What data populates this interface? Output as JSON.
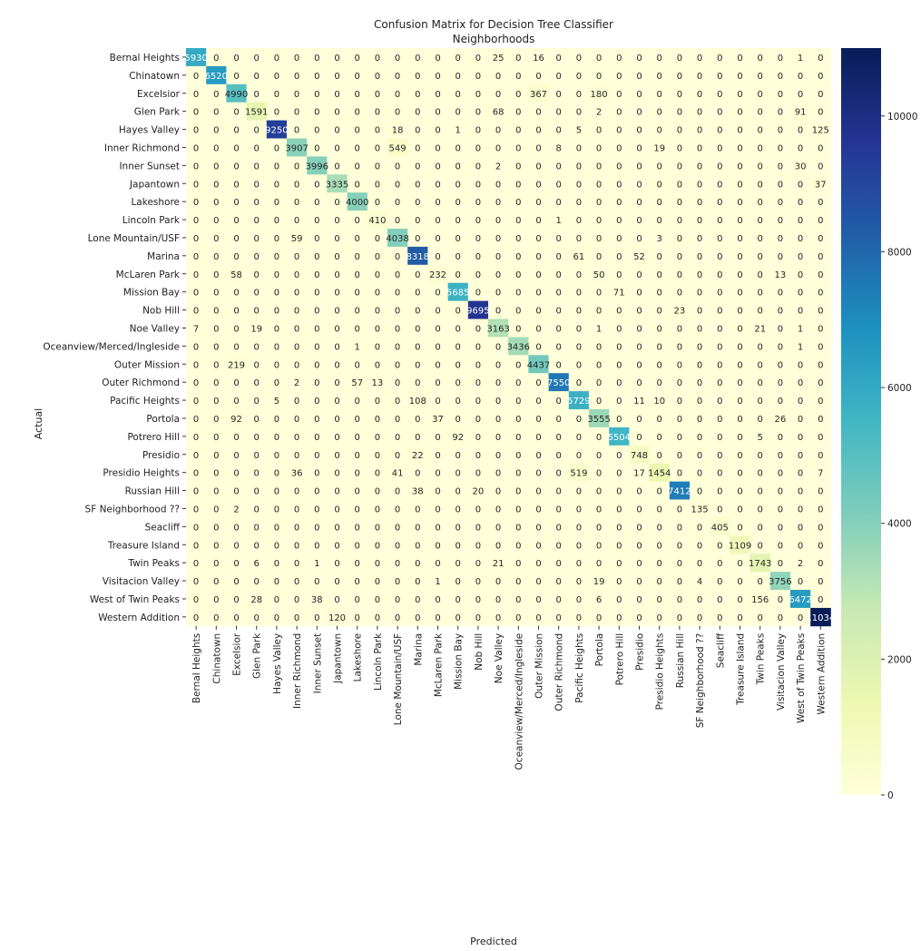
{
  "chart_data": {
    "type": "heatmap",
    "title": "Confusion Matrix for Decision Tree Classifier",
    "subtitle": "Neighborhoods",
    "xlabel": "Predicted",
    "ylabel": "Actual",
    "colormap": "YlGnBu",
    "colorbar": {
      "min": 0,
      "max": 11000,
      "ticks": [
        0,
        2000,
        4000,
        6000,
        8000,
        10000
      ]
    },
    "labels": [
      "Bernal Heights",
      "Chinatown",
      "Excelsior",
      "Glen Park",
      "Hayes Valley",
      "Inner Richmond",
      "Inner Sunset",
      "Japantown",
      "Lakeshore",
      "Lincoln Park",
      "Lone Mountain/USF",
      "Marina",
      "McLaren Park",
      "Mission Bay",
      "Nob Hill",
      "Noe Valley",
      "Oceanview/Merced/Ingleside",
      "Outer Mission",
      "Outer Richmond",
      "Pacific Heights",
      "Portola",
      "Potrero Hill",
      "Presidio",
      "Presidio Heights",
      "Russian Hill",
      "SF Neighborhood ??",
      "Seacliff",
      "Treasure Island",
      "Twin Peaks",
      "Visitacion Valley",
      "West of Twin Peaks",
      "Western Addition"
    ],
    "matrix": [
      [
        5930,
        0,
        0,
        0,
        0,
        0,
        0,
        0,
        0,
        0,
        0,
        0,
        0,
        0,
        0,
        25,
        0,
        16,
        0,
        0,
        0,
        0,
        0,
        0,
        0,
        0,
        0,
        0,
        0,
        0,
        1,
        0
      ],
      [
        0,
        6520,
        0,
        0,
        0,
        0,
        0,
        0,
        0,
        0,
        0,
        0,
        0,
        0,
        0,
        0,
        0,
        0,
        0,
        0,
        0,
        0,
        0,
        0,
        0,
        0,
        0,
        0,
        0,
        0,
        0,
        0
      ],
      [
        0,
        0,
        4990,
        0,
        0,
        0,
        0,
        0,
        0,
        0,
        0,
        0,
        0,
        0,
        0,
        0,
        0,
        367,
        0,
        0,
        180,
        0,
        0,
        0,
        0,
        0,
        0,
        0,
        0,
        0,
        0,
        0
      ],
      [
        0,
        0,
        0,
        1591,
        0,
        0,
        0,
        0,
        0,
        0,
        0,
        0,
        0,
        0,
        0,
        68,
        0,
        0,
        0,
        0,
        2,
        0,
        0,
        0,
        0,
        0,
        0,
        0,
        0,
        0,
        91,
        0
      ],
      [
        0,
        0,
        0,
        0,
        9250,
        0,
        0,
        0,
        0,
        0,
        18,
        0,
        0,
        1,
        0,
        0,
        0,
        0,
        0,
        5,
        0,
        0,
        0,
        0,
        0,
        0,
        0,
        0,
        0,
        0,
        0,
        125
      ],
      [
        0,
        0,
        0,
        0,
        0,
        3907,
        0,
        0,
        0,
        0,
        549,
        0,
        0,
        0,
        0,
        0,
        0,
        0,
        8,
        0,
        0,
        0,
        0,
        19,
        0,
        0,
        0,
        0,
        0,
        0,
        0,
        0
      ],
      [
        0,
        0,
        0,
        0,
        0,
        0,
        3996,
        0,
        0,
        0,
        0,
        0,
        0,
        0,
        0,
        2,
        0,
        0,
        0,
        0,
        0,
        0,
        0,
        0,
        0,
        0,
        0,
        0,
        0,
        0,
        30,
        0
      ],
      [
        0,
        0,
        0,
        0,
        0,
        0,
        0,
        3335,
        0,
        0,
        0,
        0,
        0,
        0,
        0,
        0,
        0,
        0,
        0,
        0,
        0,
        0,
        0,
        0,
        0,
        0,
        0,
        0,
        0,
        0,
        0,
        37
      ],
      [
        0,
        0,
        0,
        0,
        0,
        0,
        0,
        0,
        4000,
        0,
        0,
        0,
        0,
        0,
        0,
        0,
        0,
        0,
        0,
        0,
        0,
        0,
        0,
        0,
        0,
        0,
        0,
        0,
        0,
        0,
        0,
        0
      ],
      [
        0,
        0,
        0,
        0,
        0,
        0,
        0,
        0,
        0,
        410,
        0,
        0,
        0,
        0,
        0,
        0,
        0,
        0,
        1,
        0,
        0,
        0,
        0,
        0,
        0,
        0,
        0,
        0,
        0,
        0,
        0,
        0
      ],
      [
        0,
        0,
        0,
        0,
        0,
        59,
        0,
        0,
        0,
        0,
        4038,
        0,
        0,
        0,
        0,
        0,
        0,
        0,
        0,
        0,
        0,
        0,
        0,
        3,
        0,
        0,
        0,
        0,
        0,
        0,
        0,
        0
      ],
      [
        0,
        0,
        0,
        0,
        0,
        0,
        0,
        0,
        0,
        0,
        0,
        8318,
        0,
        0,
        0,
        0,
        0,
        0,
        0,
        61,
        0,
        0,
        52,
        0,
        0,
        0,
        0,
        0,
        0,
        0,
        0,
        0
      ],
      [
        0,
        0,
        58,
        0,
        0,
        0,
        0,
        0,
        0,
        0,
        0,
        0,
        232,
        0,
        0,
        0,
        0,
        0,
        0,
        0,
        50,
        0,
        0,
        0,
        0,
        0,
        0,
        0,
        0,
        13,
        0,
        0
      ],
      [
        0,
        0,
        0,
        0,
        0,
        0,
        0,
        0,
        0,
        0,
        0,
        0,
        0,
        5685,
        0,
        0,
        0,
        0,
        0,
        0,
        0,
        71,
        0,
        0,
        0,
        0,
        0,
        0,
        0,
        0,
        0,
        0
      ],
      [
        0,
        0,
        0,
        0,
        0,
        0,
        0,
        0,
        0,
        0,
        0,
        0,
        0,
        0,
        9695,
        0,
        0,
        0,
        0,
        0,
        0,
        0,
        0,
        0,
        23,
        0,
        0,
        0,
        0,
        0,
        0,
        0
      ],
      [
        7,
        0,
        0,
        19,
        0,
        0,
        0,
        0,
        0,
        0,
        0,
        0,
        0,
        0,
        0,
        3163,
        0,
        0,
        0,
        0,
        1,
        0,
        0,
        0,
        0,
        0,
        0,
        0,
        21,
        0,
        1,
        0
      ],
      [
        0,
        0,
        0,
        0,
        0,
        0,
        0,
        0,
        1,
        0,
        0,
        0,
        0,
        0,
        0,
        0,
        3436,
        0,
        0,
        0,
        0,
        0,
        0,
        0,
        0,
        0,
        0,
        0,
        0,
        0,
        1,
        0
      ],
      [
        0,
        0,
        219,
        0,
        0,
        0,
        0,
        0,
        0,
        0,
        0,
        0,
        0,
        0,
        0,
        0,
        0,
        4437,
        0,
        0,
        0,
        0,
        0,
        0,
        0,
        0,
        0,
        0,
        0,
        0,
        0,
        0
      ],
      [
        0,
        0,
        0,
        0,
        0,
        2,
        0,
        0,
        57,
        13,
        0,
        0,
        0,
        0,
        0,
        0,
        0,
        0,
        7550,
        0,
        0,
        0,
        0,
        0,
        0,
        0,
        0,
        0,
        0,
        0,
        0,
        0
      ],
      [
        0,
        0,
        0,
        0,
        5,
        0,
        0,
        0,
        0,
        0,
        0,
        108,
        0,
        0,
        0,
        0,
        0,
        0,
        0,
        5729,
        0,
        0,
        11,
        10,
        0,
        0,
        0,
        0,
        0,
        0,
        0,
        0
      ],
      [
        0,
        0,
        92,
        0,
        0,
        0,
        0,
        0,
        0,
        0,
        0,
        0,
        37,
        0,
        0,
        0,
        0,
        0,
        0,
        0,
        3555,
        0,
        0,
        0,
        0,
        0,
        0,
        0,
        0,
        26,
        0,
        0
      ],
      [
        0,
        0,
        0,
        0,
        0,
        0,
        0,
        0,
        0,
        0,
        0,
        0,
        0,
        92,
        0,
        0,
        0,
        0,
        0,
        0,
        0,
        5504,
        0,
        0,
        0,
        0,
        0,
        0,
        5,
        0,
        0,
        0
      ],
      [
        0,
        0,
        0,
        0,
        0,
        0,
        0,
        0,
        0,
        0,
        0,
        22,
        0,
        0,
        0,
        0,
        0,
        0,
        0,
        0,
        0,
        0,
        748,
        0,
        0,
        0,
        0,
        0,
        0,
        0,
        0,
        0
      ],
      [
        0,
        0,
        0,
        0,
        0,
        36,
        0,
        0,
        0,
        0,
        41,
        0,
        0,
        0,
        0,
        0,
        0,
        0,
        0,
        519,
        0,
        0,
        17,
        1454,
        0,
        0,
        0,
        0,
        0,
        0,
        0,
        7
      ],
      [
        0,
        0,
        0,
        0,
        0,
        0,
        0,
        0,
        0,
        0,
        0,
        38,
        0,
        0,
        20,
        0,
        0,
        0,
        0,
        0,
        0,
        0,
        0,
        0,
        7412,
        0,
        0,
        0,
        0,
        0,
        0,
        0
      ],
      [
        0,
        0,
        2,
        0,
        0,
        0,
        0,
        0,
        0,
        0,
        0,
        0,
        0,
        0,
        0,
        0,
        0,
        0,
        0,
        0,
        0,
        0,
        0,
        0,
        0,
        135,
        0,
        0,
        0,
        0,
        0,
        0
      ],
      [
        0,
        0,
        0,
        0,
        0,
        0,
        0,
        0,
        0,
        0,
        0,
        0,
        0,
        0,
        0,
        0,
        0,
        0,
        0,
        0,
        0,
        0,
        0,
        0,
        0,
        0,
        405,
        0,
        0,
        0,
        0,
        0
      ],
      [
        0,
        0,
        0,
        0,
        0,
        0,
        0,
        0,
        0,
        0,
        0,
        0,
        0,
        0,
        0,
        0,
        0,
        0,
        0,
        0,
        0,
        0,
        0,
        0,
        0,
        0,
        0,
        1109,
        0,
        0,
        0,
        0
      ],
      [
        0,
        0,
        0,
        6,
        0,
        0,
        1,
        0,
        0,
        0,
        0,
        0,
        0,
        0,
        0,
        21,
        0,
        0,
        0,
        0,
        0,
        0,
        0,
        0,
        0,
        0,
        0,
        0,
        1743,
        0,
        2,
        0
      ],
      [
        0,
        0,
        0,
        0,
        0,
        0,
        0,
        0,
        0,
        0,
        0,
        0,
        1,
        0,
        0,
        0,
        0,
        0,
        0,
        0,
        19,
        0,
        0,
        0,
        0,
        4,
        0,
        0,
        0,
        3756,
        0,
        0
      ],
      [
        0,
        0,
        0,
        28,
        0,
        0,
        38,
        0,
        0,
        0,
        0,
        0,
        0,
        0,
        0,
        0,
        0,
        0,
        0,
        0,
        6,
        0,
        0,
        0,
        0,
        0,
        0,
        0,
        156,
        0,
        6472,
        0
      ],
      [
        0,
        0,
        0,
        0,
        0,
        0,
        0,
        120,
        0,
        0,
        0,
        0,
        0,
        0,
        0,
        0,
        0,
        0,
        0,
        0,
        0,
        0,
        0,
        0,
        0,
        0,
        0,
        0,
        0,
        0,
        0,
        11034
      ]
    ]
  }
}
